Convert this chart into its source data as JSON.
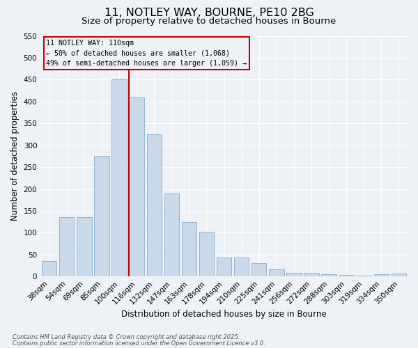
{
  "title1": "11, NOTLEY WAY, BOURNE, PE10 2BG",
  "title2": "Size of property relative to detached houses in Bourne",
  "xlabel": "Distribution of detached houses by size in Bourne",
  "ylabel": "Number of detached properties",
  "categories": [
    "38sqm",
    "54sqm",
    "69sqm",
    "85sqm",
    "100sqm",
    "116sqm",
    "132sqm",
    "147sqm",
    "163sqm",
    "178sqm",
    "194sqm",
    "210sqm",
    "225sqm",
    "241sqm",
    "256sqm",
    "272sqm",
    "288sqm",
    "303sqm",
    "319sqm",
    "334sqm",
    "350sqm"
  ],
  "values": [
    35,
    135,
    135,
    275,
    450,
    410,
    325,
    190,
    125,
    102,
    44,
    43,
    30,
    17,
    9,
    9,
    5,
    4,
    2,
    5,
    6
  ],
  "bar_color": "#c9d9ea",
  "bar_edge_color": "#7fafd0",
  "vline_color": "#bb0000",
  "vline_x_index": 5,
  "ylim": [
    0,
    550
  ],
  "yticks": [
    0,
    50,
    100,
    150,
    200,
    250,
    300,
    350,
    400,
    450,
    500,
    550
  ],
  "annotation_title": "11 NOTLEY WAY: 110sqm",
  "annotation_line1": "← 50% of detached houses are smaller (1,068)",
  "annotation_line2": "49% of semi-detached houses are larger (1,059) →",
  "annotation_box_color": "#cc0000",
  "footnote1": "Contains HM Land Registry data © Crown copyright and database right 2025.",
  "footnote2": "Contains public sector information licensed under the Open Government Licence v3.0.",
  "bg_color": "#eef2f7",
  "grid_color": "#ffffff",
  "title_fontsize": 11.5,
  "subtitle_fontsize": 9.5,
  "axis_label_fontsize": 8.5,
  "tick_fontsize": 7.5,
  "bar_width": 0.85
}
